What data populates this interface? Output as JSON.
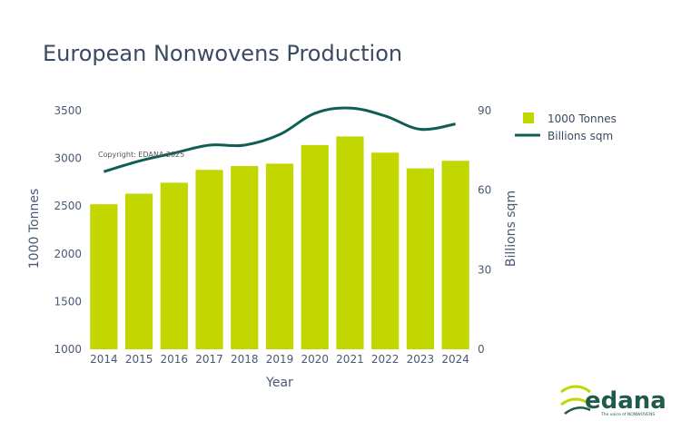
{
  "chart_data": {
    "type": "bar+line",
    "title": "European Nonwovens Production",
    "xlabel": "Year",
    "ylabel": "1000 Tonnes",
    "y2label": "Billions sqm",
    "categories": [
      "2014",
      "2015",
      "2016",
      "2017",
      "2018",
      "2019",
      "2020",
      "2021",
      "2022",
      "2023",
      "2024"
    ],
    "ylim": [
      1000,
      3500
    ],
    "yticks": [
      1000,
      1500,
      2000,
      2500,
      3000,
      3500
    ],
    "y2lim": [
      0,
      90
    ],
    "y2ticks": [
      0,
      30,
      60,
      90
    ],
    "grid": false,
    "legend_position": "top-right",
    "series": [
      {
        "name": "1000 Tonnes",
        "type": "bar",
        "axis": "y",
        "color": "#c2d600",
        "values": [
          2520,
          2630,
          2745,
          2880,
          2920,
          2945,
          3140,
          3230,
          3060,
          2895,
          2975
        ]
      },
      {
        "name": "Billions sqm",
        "type": "line",
        "axis": "y2",
        "color": "#0f5e55",
        "values": [
          67,
          71,
          74,
          77,
          77,
          81,
          89,
          91,
          88,
          83,
          85
        ]
      }
    ],
    "annotations": [
      "Copyright: EDANA 2025"
    ]
  },
  "logo": {
    "word": "edana",
    "tagline": "The voice of NONWOVENS",
    "color": "#1f5a4a",
    "accent": "#c2d600"
  }
}
